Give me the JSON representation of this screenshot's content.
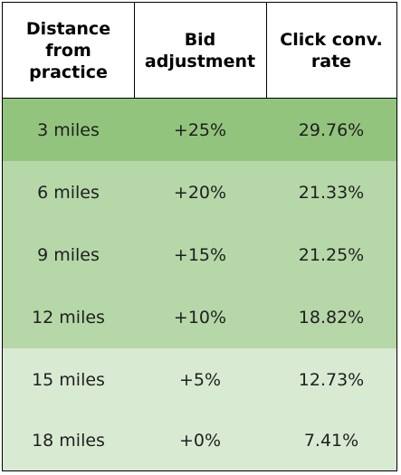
{
  "table": {
    "headers": [
      "Distance\nfrom\npractice",
      "Bid\nadjustment",
      "Click conv.\nrate"
    ],
    "rows": [
      {
        "distance": "3 miles",
        "bid": "+25%",
        "rate": "29.76%",
        "color": "#92c47d"
      },
      {
        "distance": "6 miles",
        "bid": "+20%",
        "rate": "21.33%",
        "color": "#b6d7a8"
      },
      {
        "distance": "9 miles",
        "bid": "+15%",
        "rate": "21.25%",
        "color": "#b6d7a8"
      },
      {
        "distance": "12 miles",
        "bid": "+10%",
        "rate": "18.82%",
        "color": "#b6d7a8"
      },
      {
        "distance": "15 miles",
        "bid": "+5%",
        "rate": "12.73%",
        "color": "#d9ead3"
      },
      {
        "distance": "18 miles",
        "bid": "+0%",
        "rate": "7.41%",
        "color": "#d9ead3"
      }
    ]
  }
}
